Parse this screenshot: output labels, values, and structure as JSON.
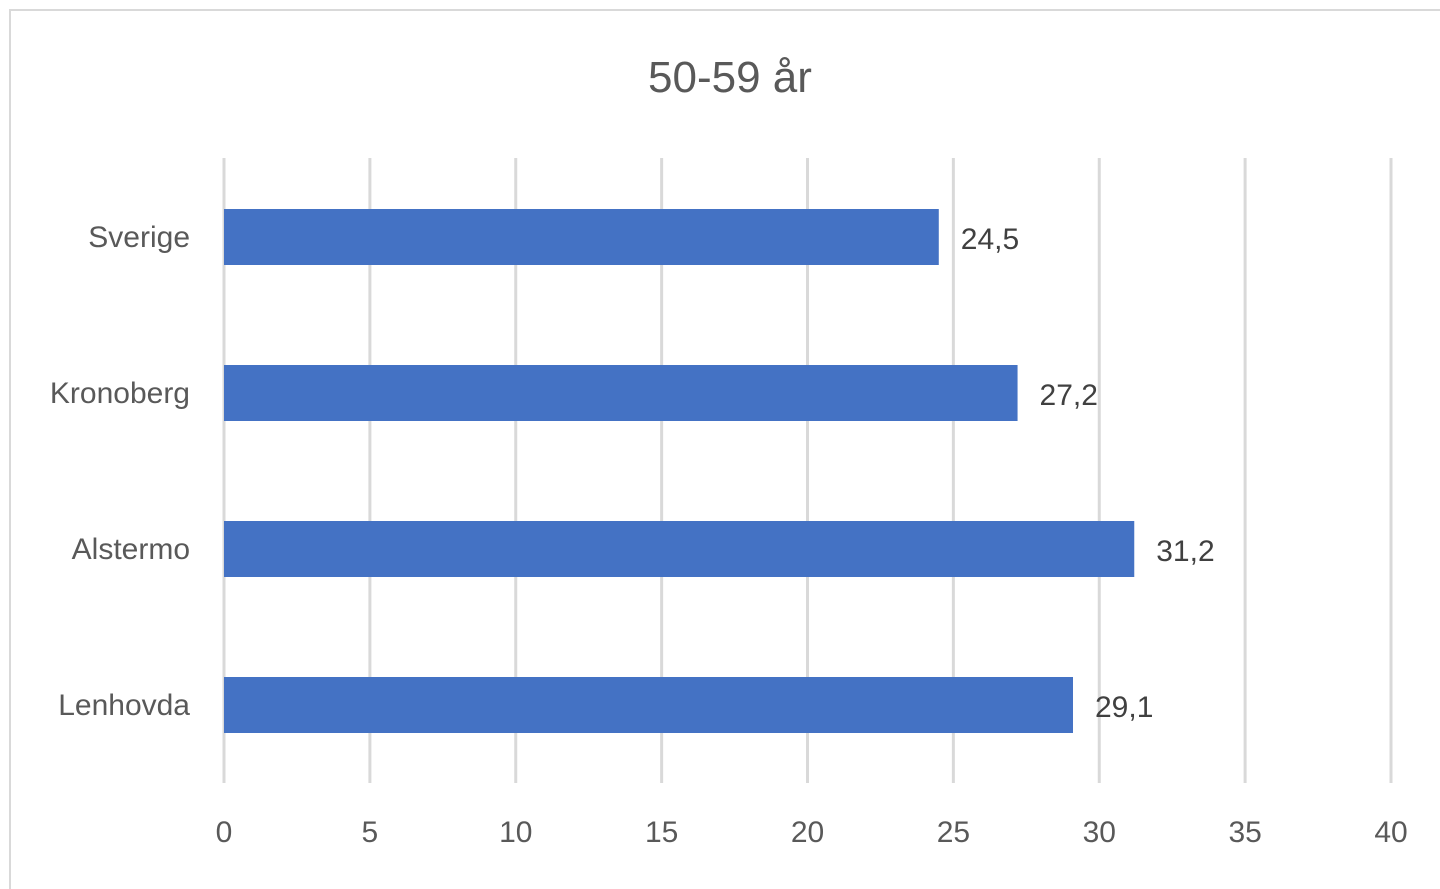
{
  "chart_data": {
    "type": "bar",
    "orientation": "horizontal",
    "title": "50-59 år",
    "categories": [
      "Sverige",
      "Kronoberg",
      "Alstermo",
      "Lenhovda"
    ],
    "values": [
      24.5,
      27.2,
      31.2,
      29.1
    ],
    "data_labels": [
      "24,5",
      "27,2",
      "31,2",
      "29,1"
    ],
    "xlim": [
      0,
      40
    ],
    "x_ticks": [
      0,
      5,
      10,
      15,
      20,
      25,
      30,
      35,
      40
    ],
    "x_tick_labels": [
      "0",
      "5",
      "10",
      "15",
      "20",
      "25",
      "30",
      "35",
      "40"
    ],
    "grid": "vertical",
    "legend": "none",
    "bar_color": "#4472C4"
  }
}
